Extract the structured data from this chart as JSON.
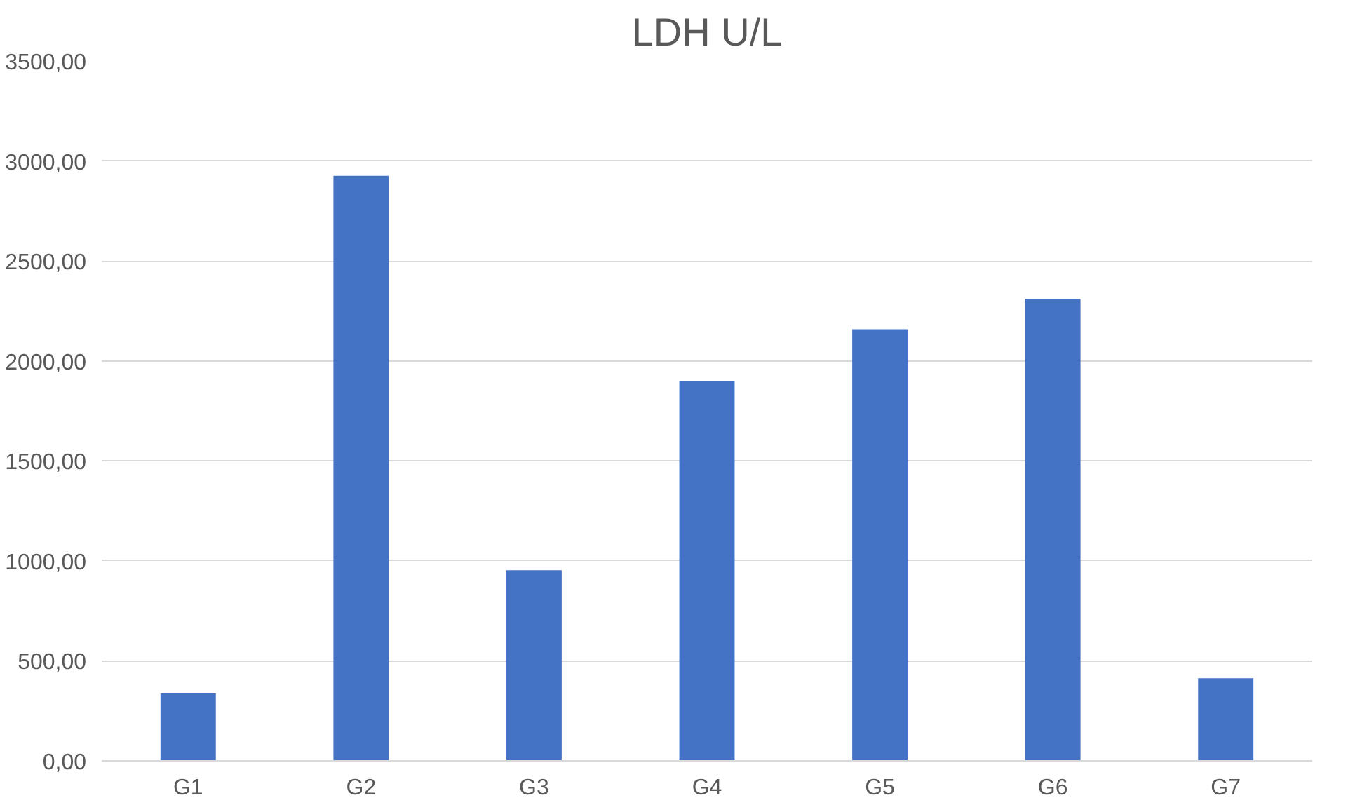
{
  "chart_data": {
    "type": "bar",
    "title": "LDH U/L",
    "categories": [
      "G1",
      "G2",
      "G3",
      "G4",
      "G5",
      "G6",
      "G7"
    ],
    "values": [
      337,
      2926,
      953,
      1897,
      2159,
      2310,
      413
    ],
    "color": "#4472c4",
    "ylim": [
      0,
      3500
    ],
    "yticks": [
      {
        "value": 0,
        "label": "0,00"
      },
      {
        "value": 500,
        "label": "500,00"
      },
      {
        "value": 1000,
        "label": "1000,00"
      },
      {
        "value": 1500,
        "label": "1500,00"
      },
      {
        "value": 2000,
        "label": "2000,00"
      },
      {
        "value": 2500,
        "label": "2500,00"
      },
      {
        "value": 3000,
        "label": "3000,00"
      },
      {
        "value": 3500,
        "label": "3500,00"
      }
    ],
    "grid": "y"
  }
}
